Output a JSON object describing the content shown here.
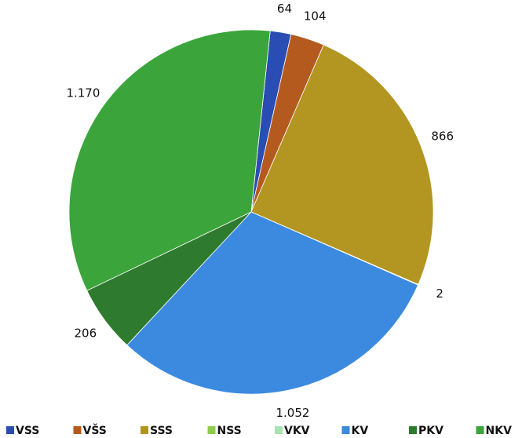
{
  "chart_data": {
    "type": "pie",
    "categories": [
      "VSS",
      "VŠS",
      "SSS",
      "NSS",
      "VKV",
      "KV",
      "PKV",
      "NKV"
    ],
    "values": [
      64,
      104,
      866,
      2,
      0,
      1052,
      206,
      1170
    ],
    "value_labels": [
      "64",
      "104",
      "866",
      "2",
      null,
      "1.052",
      "206",
      "1.170"
    ],
    "colors": [
      "#2a4db3",
      "#b55a1f",
      "#b39522",
      "#8fcc4c",
      "#a9e2b3",
      "#3b8ae0",
      "#2e7a2e",
      "#3ba53b"
    ],
    "legend": "bottom"
  }
}
